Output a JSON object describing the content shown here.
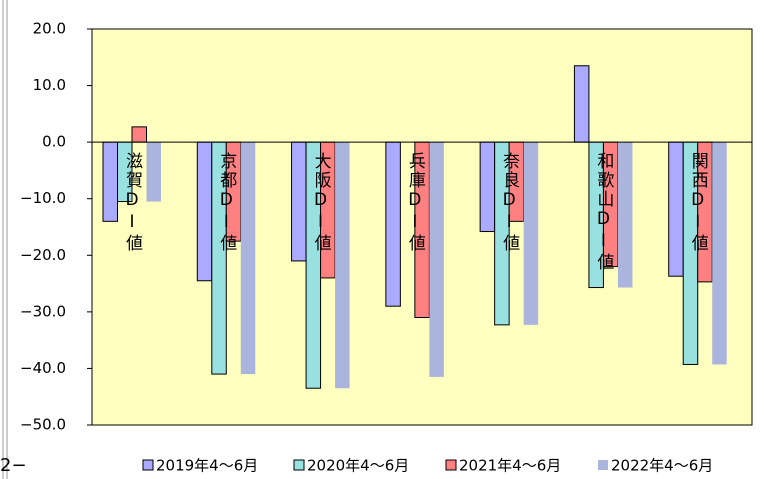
{
  "chart_data": {
    "type": "bar",
    "categories": [
      "滋賀DI値",
      "京都DI値",
      "大阪DI値",
      "兵庫DI値",
      "奈良DI値",
      "和歌山DI値",
      "関西DI値"
    ],
    "series": [
      {
        "name": "2019年4～6月",
        "color": "#aaaaff",
        "values": [
          -14.0,
          -24.5,
          -21.0,
          -29.0,
          -15.8,
          13.5,
          -23.7
        ]
      },
      {
        "name": "2020年4～6月",
        "color": "#99e0e0",
        "values": [
          -10.5,
          -41.0,
          -43.5,
          null,
          -32.3,
          -25.7,
          -39.3
        ]
      },
      {
        "name": "2021年4～6月",
        "color": "#ff8080",
        "values": [
          2.7,
          -17.5,
          -24.0,
          -31.0,
          -14.0,
          -22.0,
          -24.7
        ]
      },
      {
        "name": "2022年4～6月",
        "color": "#aab4dc",
        "values": [
          -10.5,
          -41.0,
          -43.5,
          -41.5,
          -32.3,
          -25.7,
          -39.3
        ]
      }
    ],
    "ylim": [
      -50,
      20
    ],
    "yticks": [
      {
        "value": 20,
        "label": "20.0"
      },
      {
        "value": 10,
        "label": "10.0"
      },
      {
        "value": 0,
        "label": "0.0"
      },
      {
        "value": -10,
        "label": "−10.0"
      },
      {
        "value": -20,
        "label": "−20.0"
      },
      {
        "value": -30,
        "label": "−30.0"
      },
      {
        "value": -40,
        "label": "−40.0"
      },
      {
        "value": -50,
        "label": "−50.0"
      }
    ],
    "negative_tick_color": "#ff0000",
    "plot_background": "#ffffc0",
    "annotation": "2−"
  }
}
